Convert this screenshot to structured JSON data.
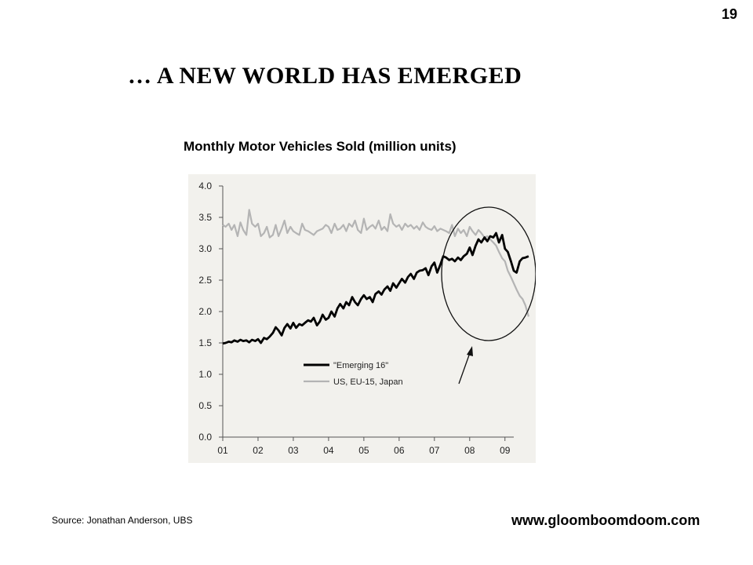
{
  "page_number": "19",
  "title": "… A NEW WORLD HAS EMERGED",
  "source_note": "Source: Jonathan Anderson, UBS",
  "website": "www.gloomboomdoom.com",
  "colors": {
    "emerging": "#000000",
    "developed": "#b4b4b4",
    "panel_background": "#f2f1ed",
    "annotation": "#111111"
  },
  "chart_data": {
    "type": "line",
    "title": "Monthly  Motor Vehicles Sold (million units)",
    "xlabel": "",
    "ylabel": "",
    "xlim": [
      2001.0,
      2009.25
    ],
    "ylim": [
      0.0,
      4.0
    ],
    "x_ticks": [
      {
        "value": 2001,
        "label": "01"
      },
      {
        "value": 2002,
        "label": "02"
      },
      {
        "value": 2003,
        "label": "03"
      },
      {
        "value": 2004,
        "label": "04"
      },
      {
        "value": 2005,
        "label": "05"
      },
      {
        "value": 2006,
        "label": "06"
      },
      {
        "value": 2007,
        "label": "07"
      },
      {
        "value": 2008,
        "label": "08"
      },
      {
        "value": 2009,
        "label": "09"
      }
    ],
    "y_ticks": [
      {
        "value": 0.0,
        "label": "0.0"
      },
      {
        "value": 0.5,
        "label": "0.5"
      },
      {
        "value": 1.0,
        "label": "1.0"
      },
      {
        "value": 1.5,
        "label": "1.5"
      },
      {
        "value": 2.0,
        "label": "2.0"
      },
      {
        "value": 2.5,
        "label": "2.5"
      },
      {
        "value": 3.0,
        "label": "3.0"
      },
      {
        "value": 3.5,
        "label": "3.5"
      },
      {
        "value": 4.0,
        "label": "4.0"
      }
    ],
    "grid": false,
    "legend_position": "center-right",
    "series": [
      {
        "name": "\"Emerging 16\"",
        "color": "#000000",
        "points": [
          [
            2001.0,
            1.49
          ],
          [
            2001.08,
            1.5
          ],
          [
            2001.17,
            1.52
          ],
          [
            2001.25,
            1.51
          ],
          [
            2001.33,
            1.54
          ],
          [
            2001.42,
            1.52
          ],
          [
            2001.5,
            1.55
          ],
          [
            2001.58,
            1.53
          ],
          [
            2001.67,
            1.54
          ],
          [
            2001.75,
            1.51
          ],
          [
            2001.83,
            1.55
          ],
          [
            2001.92,
            1.53
          ],
          [
            2002.0,
            1.56
          ],
          [
            2002.08,
            1.5
          ],
          [
            2002.17,
            1.58
          ],
          [
            2002.25,
            1.56
          ],
          [
            2002.33,
            1.6
          ],
          [
            2002.42,
            1.66
          ],
          [
            2002.5,
            1.75
          ],
          [
            2002.58,
            1.7
          ],
          [
            2002.67,
            1.62
          ],
          [
            2002.75,
            1.74
          ],
          [
            2002.83,
            1.8
          ],
          [
            2002.92,
            1.73
          ],
          [
            2003.0,
            1.82
          ],
          [
            2003.08,
            1.74
          ],
          [
            2003.17,
            1.8
          ],
          [
            2003.25,
            1.78
          ],
          [
            2003.33,
            1.82
          ],
          [
            2003.42,
            1.86
          ],
          [
            2003.5,
            1.84
          ],
          [
            2003.58,
            1.9
          ],
          [
            2003.67,
            1.78
          ],
          [
            2003.75,
            1.84
          ],
          [
            2003.83,
            1.95
          ],
          [
            2003.92,
            1.87
          ],
          [
            2004.0,
            1.9
          ],
          [
            2004.08,
            2.0
          ],
          [
            2004.17,
            1.92
          ],
          [
            2004.25,
            2.05
          ],
          [
            2004.33,
            2.12
          ],
          [
            2004.42,
            2.05
          ],
          [
            2004.5,
            2.15
          ],
          [
            2004.58,
            2.1
          ],
          [
            2004.67,
            2.23
          ],
          [
            2004.75,
            2.15
          ],
          [
            2004.83,
            2.1
          ],
          [
            2004.92,
            2.2
          ],
          [
            2005.0,
            2.26
          ],
          [
            2005.08,
            2.2
          ],
          [
            2005.17,
            2.23
          ],
          [
            2005.25,
            2.15
          ],
          [
            2005.33,
            2.28
          ],
          [
            2005.42,
            2.32
          ],
          [
            2005.5,
            2.27
          ],
          [
            2005.58,
            2.35
          ],
          [
            2005.67,
            2.4
          ],
          [
            2005.75,
            2.33
          ],
          [
            2005.83,
            2.45
          ],
          [
            2005.92,
            2.38
          ],
          [
            2006.0,
            2.45
          ],
          [
            2006.08,
            2.52
          ],
          [
            2006.17,
            2.46
          ],
          [
            2006.25,
            2.55
          ],
          [
            2006.33,
            2.6
          ],
          [
            2006.42,
            2.52
          ],
          [
            2006.5,
            2.62
          ],
          [
            2006.58,
            2.65
          ],
          [
            2006.67,
            2.66
          ],
          [
            2006.75,
            2.69
          ],
          [
            2006.83,
            2.58
          ],
          [
            2006.92,
            2.72
          ],
          [
            2007.0,
            2.78
          ],
          [
            2007.08,
            2.62
          ],
          [
            2007.17,
            2.75
          ],
          [
            2007.25,
            2.88
          ],
          [
            2007.33,
            2.86
          ],
          [
            2007.42,
            2.82
          ],
          [
            2007.5,
            2.84
          ],
          [
            2007.58,
            2.8
          ],
          [
            2007.67,
            2.86
          ],
          [
            2007.75,
            2.82
          ],
          [
            2007.83,
            2.88
          ],
          [
            2007.92,
            2.92
          ],
          [
            2008.0,
            3.02
          ],
          [
            2008.08,
            2.9
          ],
          [
            2008.17,
            3.05
          ],
          [
            2008.25,
            3.15
          ],
          [
            2008.33,
            3.1
          ],
          [
            2008.42,
            3.18
          ],
          [
            2008.5,
            3.12
          ],
          [
            2008.58,
            3.2
          ],
          [
            2008.67,
            3.18
          ],
          [
            2008.75,
            3.25
          ],
          [
            2008.83,
            3.1
          ],
          [
            2008.92,
            3.22
          ],
          [
            2009.0,
            3.0
          ],
          [
            2009.08,
            2.95
          ],
          [
            2009.17,
            2.8
          ],
          [
            2009.25,
            2.65
          ],
          [
            2009.33,
            2.62
          ],
          [
            2009.42,
            2.8
          ],
          [
            2009.5,
            2.85
          ],
          [
            2009.58,
            2.86
          ],
          [
            2009.67,
            2.88
          ]
        ]
      },
      {
        "name": "US, EU-15, Japan",
        "color": "#b4b4b4",
        "points": [
          [
            2001.0,
            3.38
          ],
          [
            2001.08,
            3.35
          ],
          [
            2001.17,
            3.4
          ],
          [
            2001.25,
            3.3
          ],
          [
            2001.33,
            3.38
          ],
          [
            2001.42,
            3.2
          ],
          [
            2001.5,
            3.42
          ],
          [
            2001.58,
            3.3
          ],
          [
            2001.67,
            3.22
          ],
          [
            2001.75,
            3.62
          ],
          [
            2001.83,
            3.4
          ],
          [
            2001.92,
            3.35
          ],
          [
            2002.0,
            3.4
          ],
          [
            2002.08,
            3.2
          ],
          [
            2002.17,
            3.25
          ],
          [
            2002.25,
            3.35
          ],
          [
            2002.33,
            3.18
          ],
          [
            2002.42,
            3.22
          ],
          [
            2002.5,
            3.38
          ],
          [
            2002.58,
            3.2
          ],
          [
            2002.67,
            3.32
          ],
          [
            2002.75,
            3.45
          ],
          [
            2002.83,
            3.25
          ],
          [
            2002.92,
            3.35
          ],
          [
            2003.0,
            3.28
          ],
          [
            2003.08,
            3.25
          ],
          [
            2003.17,
            3.22
          ],
          [
            2003.25,
            3.4
          ],
          [
            2003.33,
            3.3
          ],
          [
            2003.42,
            3.28
          ],
          [
            2003.5,
            3.25
          ],
          [
            2003.58,
            3.22
          ],
          [
            2003.67,
            3.28
          ],
          [
            2003.75,
            3.3
          ],
          [
            2003.83,
            3.32
          ],
          [
            2003.92,
            3.38
          ],
          [
            2004.0,
            3.35
          ],
          [
            2004.08,
            3.25
          ],
          [
            2004.17,
            3.4
          ],
          [
            2004.25,
            3.3
          ],
          [
            2004.33,
            3.32
          ],
          [
            2004.42,
            3.38
          ],
          [
            2004.5,
            3.28
          ],
          [
            2004.58,
            3.4
          ],
          [
            2004.67,
            3.35
          ],
          [
            2004.75,
            3.45
          ],
          [
            2004.83,
            3.3
          ],
          [
            2004.92,
            3.25
          ],
          [
            2005.0,
            3.48
          ],
          [
            2005.08,
            3.3
          ],
          [
            2005.17,
            3.35
          ],
          [
            2005.25,
            3.38
          ],
          [
            2005.33,
            3.32
          ],
          [
            2005.42,
            3.45
          ],
          [
            2005.5,
            3.3
          ],
          [
            2005.58,
            3.35
          ],
          [
            2005.67,
            3.28
          ],
          [
            2005.75,
            3.55
          ],
          [
            2005.83,
            3.4
          ],
          [
            2005.92,
            3.35
          ],
          [
            2006.0,
            3.38
          ],
          [
            2006.08,
            3.3
          ],
          [
            2006.17,
            3.4
          ],
          [
            2006.25,
            3.35
          ],
          [
            2006.33,
            3.38
          ],
          [
            2006.42,
            3.32
          ],
          [
            2006.5,
            3.36
          ],
          [
            2006.58,
            3.3
          ],
          [
            2006.67,
            3.42
          ],
          [
            2006.75,
            3.35
          ],
          [
            2006.83,
            3.32
          ],
          [
            2006.92,
            3.3
          ],
          [
            2007.0,
            3.36
          ],
          [
            2007.08,
            3.28
          ],
          [
            2007.17,
            3.32
          ],
          [
            2007.25,
            3.3
          ],
          [
            2007.33,
            3.28
          ],
          [
            2007.42,
            3.25
          ],
          [
            2007.5,
            3.38
          ],
          [
            2007.58,
            3.2
          ],
          [
            2007.67,
            3.32
          ],
          [
            2007.75,
            3.25
          ],
          [
            2007.83,
            3.3
          ],
          [
            2007.92,
            3.2
          ],
          [
            2008.0,
            3.35
          ],
          [
            2008.08,
            3.28
          ],
          [
            2008.17,
            3.22
          ],
          [
            2008.25,
            3.3
          ],
          [
            2008.33,
            3.25
          ],
          [
            2008.42,
            3.18
          ],
          [
            2008.5,
            3.2
          ],
          [
            2008.58,
            3.15
          ],
          [
            2008.67,
            3.1
          ],
          [
            2008.75,
            3.05
          ],
          [
            2008.83,
            2.95
          ],
          [
            2008.92,
            2.85
          ],
          [
            2009.0,
            2.8
          ],
          [
            2009.08,
            2.65
          ],
          [
            2009.17,
            2.55
          ],
          [
            2009.25,
            2.45
          ],
          [
            2009.33,
            2.35
          ],
          [
            2009.42,
            2.25
          ],
          [
            2009.5,
            2.2
          ],
          [
            2009.58,
            2.1
          ],
          [
            2009.67,
            1.92
          ]
        ]
      }
    ]
  }
}
